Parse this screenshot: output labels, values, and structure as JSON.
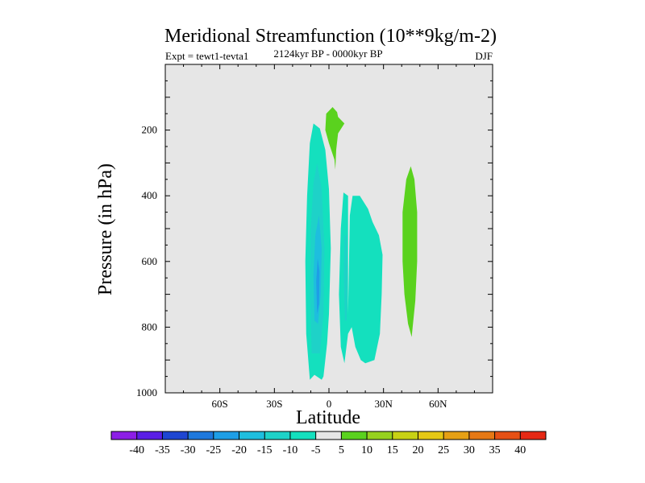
{
  "chart_data": {
    "type": "filled-contour",
    "title": "Meridional Streamfunction (10**9kg/m-2)",
    "subtitle": "2124kyr BP - 0000kyr BP",
    "left_label": "Expt = tewt1-tevta1",
    "right_label": "DJF",
    "xlabel": "Latitude",
    "ylabel": "Pressure (in hPa)",
    "xlim": [
      -90,
      90
    ],
    "ylim": [
      1000,
      0
    ],
    "x_ticks": [
      {
        "value": -60,
        "label": "60S"
      },
      {
        "value": -30,
        "label": "30S"
      },
      {
        "value": 0,
        "label": "0"
      },
      {
        "value": 30,
        "label": "30N"
      },
      {
        "value": 60,
        "label": "60N"
      }
    ],
    "y_ticks": [
      {
        "value": 200,
        "label": "200"
      },
      {
        "value": 400,
        "label": "400"
      },
      {
        "value": 600,
        "label": "600"
      },
      {
        "value": 800,
        "label": "800"
      },
      {
        "value": 1000,
        "label": "1000"
      }
    ],
    "background_color": "#e6e6e6",
    "colorbar": {
      "levels": [
        "-40",
        "-35",
        "-30",
        "-25",
        "-20",
        "-15",
        "-10",
        "-5",
        "5",
        "10",
        "15",
        "20",
        "25",
        "30",
        "35",
        "40"
      ],
      "colors": [
        "#8c1ee6",
        "#5a1ee6",
        "#1e46d2",
        "#1e78dc",
        "#1e9ee6",
        "#1ebede",
        "#1ed2c8",
        "#14e0be",
        "#e6e6e6",
        "#5ad21e",
        "#96d21e",
        "#c8d214",
        "#e6c814",
        "#e6a014",
        "#e67814",
        "#e65014",
        "#e62814"
      ]
    },
    "regions": [
      {
        "name": "southern-cell-outer",
        "value": -7,
        "color": "#14e0be",
        "points": [
          [
            -10.5,
            960
          ],
          [
            -12.5,
            820
          ],
          [
            -13,
            600
          ],
          [
            -12,
            400
          ],
          [
            -10.5,
            240
          ],
          [
            -8.5,
            180
          ],
          [
            -5,
            195
          ],
          [
            -2,
            260
          ],
          [
            0,
            380
          ],
          [
            1,
            560
          ],
          [
            0,
            760
          ],
          [
            -1,
            850
          ],
          [
            -3,
            950
          ],
          [
            -4,
            960
          ],
          [
            -8,
            945
          ]
        ]
      },
      {
        "name": "southern-cell-mid",
        "value": -12,
        "color": "#1ed2c8",
        "points": [
          [
            -9.5,
            880
          ],
          [
            -10.5,
            700
          ],
          [
            -10,
            500
          ],
          [
            -8.5,
            360
          ],
          [
            -6.5,
            300
          ],
          [
            -4,
            380
          ],
          [
            -2.5,
            560
          ],
          [
            -3,
            760
          ],
          [
            -5,
            880
          ]
        ]
      },
      {
        "name": "southern-cell-inner",
        "value": -17,
        "color": "#1ebede",
        "points": [
          [
            -8,
            780
          ],
          [
            -8.5,
            640
          ],
          [
            -7.5,
            520
          ],
          [
            -5.5,
            460
          ],
          [
            -4,
            560
          ],
          [
            -4.5,
            700
          ],
          [
            -6,
            790
          ]
        ]
      },
      {
        "name": "southern-cell-core",
        "value": -22,
        "color": "#1e9ee6",
        "points": [
          [
            -6.5,
            760
          ],
          [
            -7,
            660
          ],
          [
            -6.2,
            590
          ],
          [
            -5.2,
            630
          ],
          [
            -5.4,
            730
          ]
        ]
      },
      {
        "name": "tropical-cell",
        "value": -7,
        "color": "#14e0be",
        "points": [
          [
            8.5,
            910
          ],
          [
            6.5,
            860
          ],
          [
            5.5,
            700
          ],
          [
            6.5,
            500
          ],
          [
            8,
            390
          ],
          [
            10.5,
            400
          ],
          [
            10.5,
            760
          ],
          [
            11.5,
            460
          ],
          [
            13,
            400
          ],
          [
            17,
            400
          ],
          [
            21.5,
            440
          ],
          [
            24,
            480
          ],
          [
            27.5,
            520
          ],
          [
            29.5,
            580
          ],
          [
            29,
            700
          ],
          [
            28,
            820
          ],
          [
            25,
            900
          ],
          [
            20,
            910
          ],
          [
            17.5,
            900
          ],
          [
            14.5,
            860
          ],
          [
            12.5,
            800
          ],
          [
            10.5,
            820
          ]
        ]
      },
      {
        "name": "tropical-cell-inner",
        "value": -12,
        "color": "#1ed2c8",
        "points": [
          [
            8.8,
            780
          ],
          [
            8.2,
            640
          ],
          [
            8.6,
            520
          ],
          [
            9.6,
            520
          ],
          [
            10.1,
            640
          ],
          [
            9.7,
            780
          ]
        ]
      },
      {
        "name": "upper-positive-cell",
        "value": 7,
        "color": "#5ad21e",
        "points": [
          [
            3.5,
            320
          ],
          [
            3,
            290
          ],
          [
            0,
            240
          ],
          [
            -2,
            200
          ],
          [
            -1.5,
            150
          ],
          [
            2,
            130
          ],
          [
            4.5,
            145
          ],
          [
            5,
            160
          ],
          [
            8.5,
            180
          ],
          [
            5,
            210
          ],
          [
            4,
            260
          ]
        ]
      },
      {
        "name": "northern-positive-cell",
        "value": 7,
        "color": "#5ad21e",
        "points": [
          [
            45.5,
            830
          ],
          [
            43.5,
            790
          ],
          [
            41.5,
            700
          ],
          [
            40.5,
            600
          ],
          [
            40.5,
            450
          ],
          [
            42.5,
            350
          ],
          [
            45,
            310
          ],
          [
            47,
            350
          ],
          [
            48.5,
            450
          ],
          [
            48.5,
            600
          ],
          [
            47.5,
            720
          ]
        ]
      }
    ]
  }
}
